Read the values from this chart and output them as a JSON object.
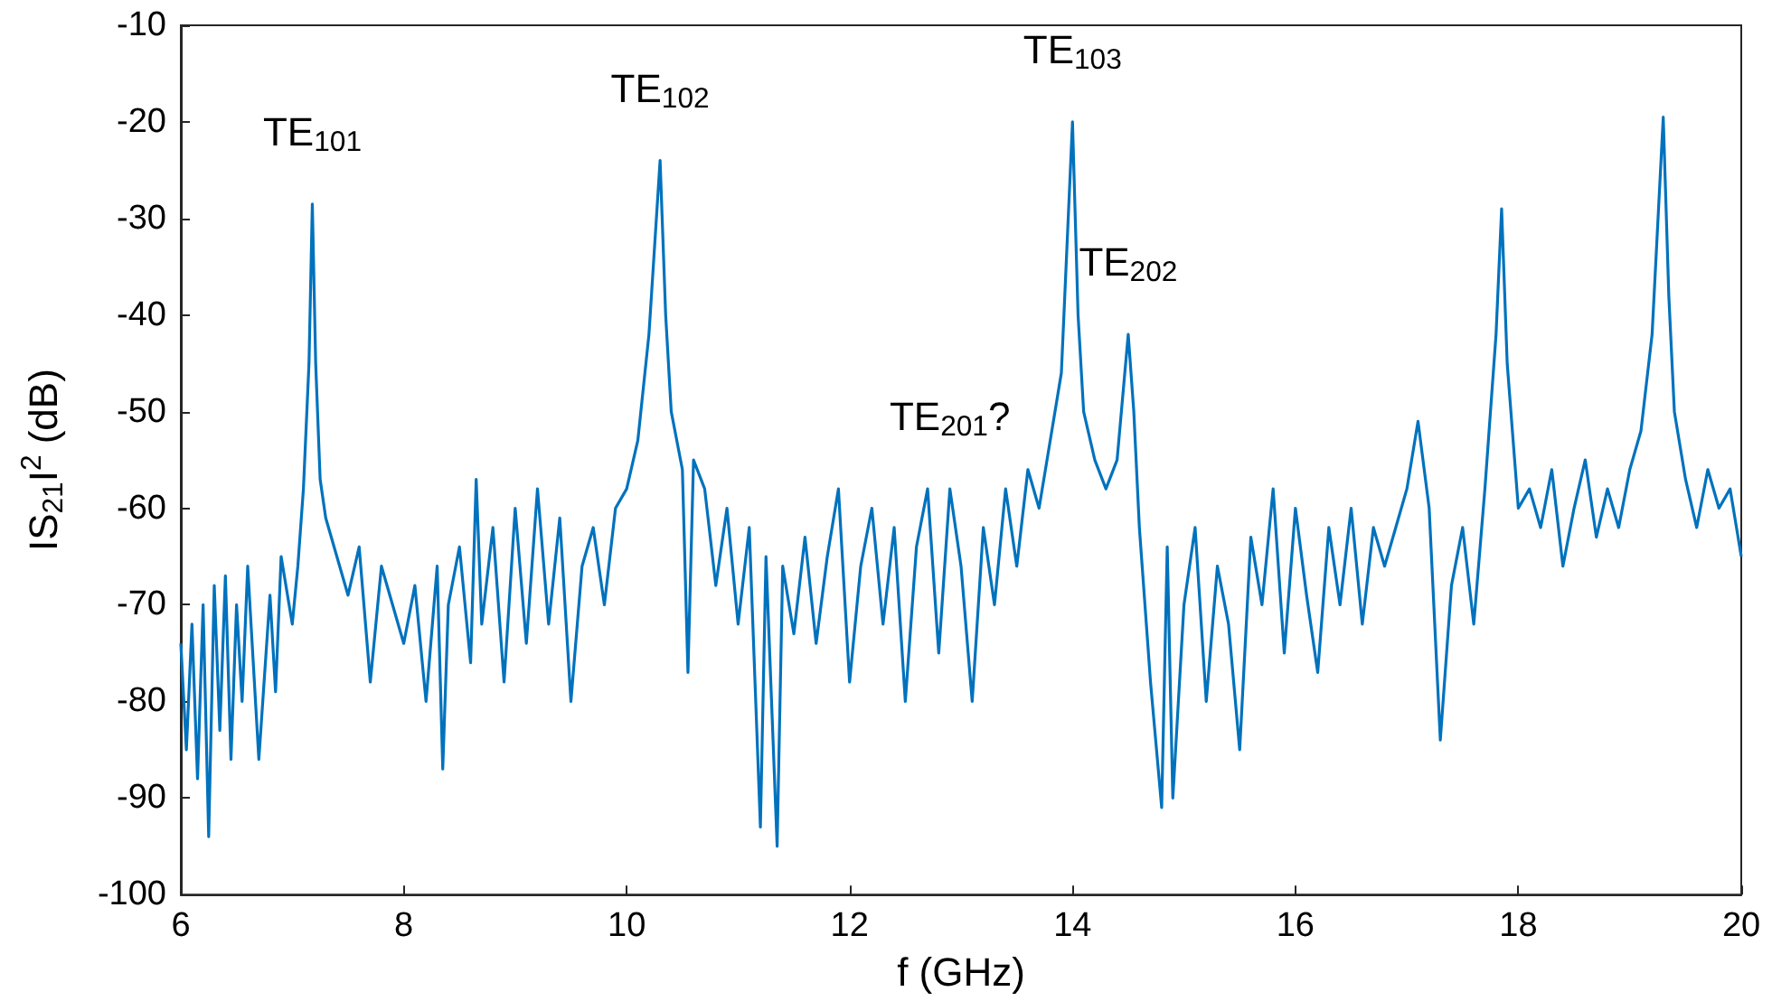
{
  "chart_data": {
    "type": "line",
    "xlabel": "f (GHz)",
    "ylabel": "IS$_{21}$I$^{2}$ (dB)",
    "xlim": [
      6,
      20
    ],
    "xticks": [
      6,
      8,
      10,
      12,
      14,
      16,
      18,
      20
    ],
    "ylim": [
      -100,
      -10
    ],
    "yticks": [
      -100,
      -90,
      -80,
      -70,
      -60,
      -50,
      -40,
      -30,
      -20,
      -10
    ],
    "grid": false,
    "marker": "none",
    "line_style": "solid",
    "annotations": [
      {
        "text": "TE$_{101}$",
        "x": 7.18,
        "y": -28.5
      },
      {
        "text": "TE$_{102}$",
        "x": 10.3,
        "y": -24
      },
      {
        "text": "TE$_{103}$",
        "x": 14.0,
        "y": -20
      },
      {
        "text": "TE$_{202}$",
        "x": 14.5,
        "y": -42
      },
      {
        "text": "TE$_{201}$?",
        "x": 12.9,
        "y": -58
      }
    ],
    "series": [
      {
        "color": "#0072bd",
        "x": [
          6.0,
          6.05,
          6.1,
          6.15,
          6.2,
          6.25,
          6.3,
          6.35,
          6.4,
          6.45,
          6.5,
          6.55,
          6.6,
          6.7,
          6.8,
          6.85,
          6.9,
          7.0,
          7.05,
          7.1,
          7.15,
          7.18,
          7.21,
          7.25,
          7.3,
          7.4,
          7.5,
          7.6,
          7.7,
          7.8,
          7.9,
          8.0,
          8.1,
          8.2,
          8.3,
          8.35,
          8.4,
          8.5,
          8.6,
          8.65,
          8.7,
          8.8,
          8.9,
          9.0,
          9.1,
          9.2,
          9.3,
          9.4,
          9.5,
          9.6,
          9.7,
          9.8,
          9.9,
          10.0,
          10.1,
          10.2,
          10.3,
          10.35,
          10.4,
          10.5,
          10.55,
          10.6,
          10.7,
          10.8,
          10.9,
          11.0,
          11.1,
          11.2,
          11.25,
          11.35,
          11.4,
          11.5,
          11.6,
          11.7,
          11.8,
          11.9,
          12.0,
          12.1,
          12.2,
          12.3,
          12.4,
          12.5,
          12.6,
          12.7,
          12.8,
          12.9,
          13.0,
          13.1,
          13.2,
          13.3,
          13.4,
          13.5,
          13.6,
          13.7,
          13.8,
          13.9,
          14.0,
          14.05,
          14.1,
          14.2,
          14.3,
          14.4,
          14.5,
          14.55,
          14.6,
          14.7,
          14.8,
          14.85,
          14.9,
          15.0,
          15.1,
          15.2,
          15.3,
          15.4,
          15.5,
          15.6,
          15.7,
          15.8,
          15.9,
          16.0,
          16.1,
          16.2,
          16.3,
          16.4,
          16.5,
          16.6,
          16.7,
          16.8,
          16.9,
          17.0,
          17.1,
          17.2,
          17.3,
          17.4,
          17.5,
          17.6,
          17.7,
          17.8,
          17.85,
          17.9,
          18.0,
          18.1,
          18.2,
          18.3,
          18.4,
          18.5,
          18.6,
          18.7,
          18.8,
          18.9,
          19.0,
          19.1,
          19.2,
          19.3,
          19.35,
          19.4,
          19.5,
          19.6,
          19.7,
          19.8,
          19.9,
          20.0
        ],
        "values": [
          -74,
          -85,
          -72,
          -88,
          -70,
          -94,
          -68,
          -83,
          -67,
          -86,
          -70,
          -80,
          -66,
          -86,
          -69,
          -79,
          -65,
          -72,
          -66,
          -58,
          -45,
          -28.5,
          -45,
          -57,
          -61,
          -65,
          -69,
          -64,
          -78,
          -66,
          -70,
          -74,
          -68,
          -80,
          -66,
          -87,
          -70,
          -64,
          -76,
          -57,
          -72,
          -62,
          -78,
          -60,
          -74,
          -58,
          -72,
          -61,
          -80,
          -66,
          -62,
          -70,
          -60,
          -58,
          -53,
          -42,
          -24,
          -40,
          -50,
          -56,
          -77,
          -55,
          -58,
          -68,
          -60,
          -72,
          -62,
          -93,
          -65,
          -95,
          -66,
          -73,
          -63,
          -74,
          -65,
          -58,
          -78,
          -66,
          -60,
          -72,
          -62,
          -80,
          -64,
          -58,
          -75,
          -58,
          -66,
          -80,
          -62,
          -70,
          -58,
          -66,
          -56,
          -60,
          -53,
          -46,
          -20,
          -40,
          -50,
          -55,
          -58,
          -55,
          -42,
          -50,
          -62,
          -78,
          -91,
          -64,
          -90,
          -70,
          -62,
          -80,
          -66,
          -72,
          -85,
          -63,
          -70,
          -58,
          -75,
          -60,
          -69,
          -77,
          -62,
          -70,
          -60,
          -72,
          -62,
          -66,
          -62,
          -58,
          -51,
          -60,
          -84,
          -68,
          -62,
          -72,
          -58,
          -42,
          -29,
          -45,
          -60,
          -58,
          -62,
          -56,
          -66,
          -60,
          -55,
          -63,
          -58,
          -62,
          -56,
          -52,
          -42,
          -19.5,
          -38,
          -50,
          -57,
          -62,
          -56,
          -60,
          -58,
          -65
        ]
      }
    ]
  }
}
